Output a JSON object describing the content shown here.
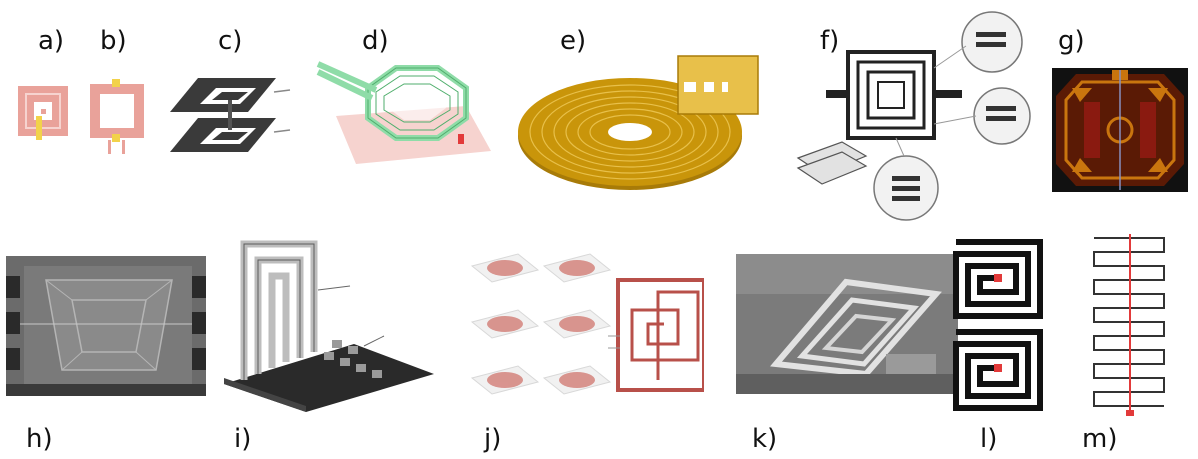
{
  "panels": [
    {
      "id": "a",
      "label": "a)"
    },
    {
      "id": "b",
      "label": "b)"
    },
    {
      "id": "c",
      "label": "c)"
    },
    {
      "id": "d",
      "label": "d)"
    },
    {
      "id": "e",
      "label": "e)"
    },
    {
      "id": "f",
      "label": "f)"
    },
    {
      "id": "g",
      "label": "g)"
    },
    {
      "id": "h",
      "label": "h)"
    },
    {
      "id": "i",
      "label": "i)"
    },
    {
      "id": "j",
      "label": "j)"
    },
    {
      "id": "k",
      "label": "k)"
    },
    {
      "id": "l",
      "label": "l)"
    },
    {
      "id": "m",
      "label": "m)"
    }
  ],
  "colors": {
    "pink": "#e9a29a",
    "pink_light": "#f6d3cf",
    "yellow": "#f2d24a",
    "dark_grey": "#3a3a3a",
    "green": "#8fdca8",
    "gold": "#c9950a",
    "gold_light": "#e8c04a",
    "chip_bg": "#5a1a05",
    "chip_orange": "#c9750e",
    "chip_red": "#8a1a10",
    "sem_grey": "#6b6b6b",
    "coil_red": "#b8504a",
    "accent_red": "#e23a3a"
  }
}
